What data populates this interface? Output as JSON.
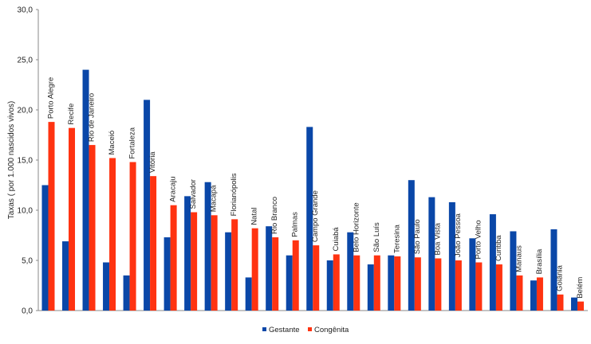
{
  "chart_data": {
    "type": "bar",
    "title": "",
    "xlabel": "",
    "ylabel": "Taxas  ( por 1.000 nascidos vivos)",
    "ylim": [
      0,
      30
    ],
    "yticks": [
      "0,0",
      "5,0",
      "10,0",
      "15,0",
      "20,0",
      "25,0",
      "30,0"
    ],
    "grid": false,
    "legend_position": "bottom",
    "categories": [
      "Porto Alegre",
      "Recife",
      "Rio de Janeiro",
      "Maceió",
      "Fortaleza",
      "Vitória",
      "Aracaju",
      "Salvador",
      "Macapá",
      "Florianópolis",
      "Natal",
      "Rio Branco",
      "Palmas",
      "Campo Grande",
      "Cuiabá",
      "Belo Horizonte",
      "São Luís",
      "Teresina",
      "São Paulo",
      "Boa Vista",
      "João Pessoa",
      "Porto Velho",
      "Curitiba",
      "Manaus",
      "Brasília",
      "Goiânia",
      "Belém"
    ],
    "series": [
      {
        "name": "Gestante",
        "color": "#0a47a8",
        "values": [
          12.5,
          6.9,
          24.0,
          4.8,
          3.5,
          21.0,
          7.3,
          11.4,
          12.8,
          7.8,
          3.3,
          8.4,
          5.5,
          18.3,
          5.0,
          7.8,
          4.6,
          5.5,
          13.0,
          11.3,
          10.8,
          7.2,
          9.6,
          7.9,
          3.0,
          8.1,
          1.3
        ]
      },
      {
        "name": "Congênita",
        "color": "#ff3311",
        "values": [
          18.8,
          18.2,
          16.5,
          15.2,
          14.8,
          13.4,
          10.5,
          9.8,
          9.5,
          9.1,
          8.2,
          7.3,
          7.0,
          6.5,
          5.6,
          5.5,
          5.5,
          5.4,
          5.3,
          5.2,
          5.0,
          4.8,
          4.6,
          3.5,
          3.3,
          1.6,
          0.9
        ]
      }
    ]
  }
}
